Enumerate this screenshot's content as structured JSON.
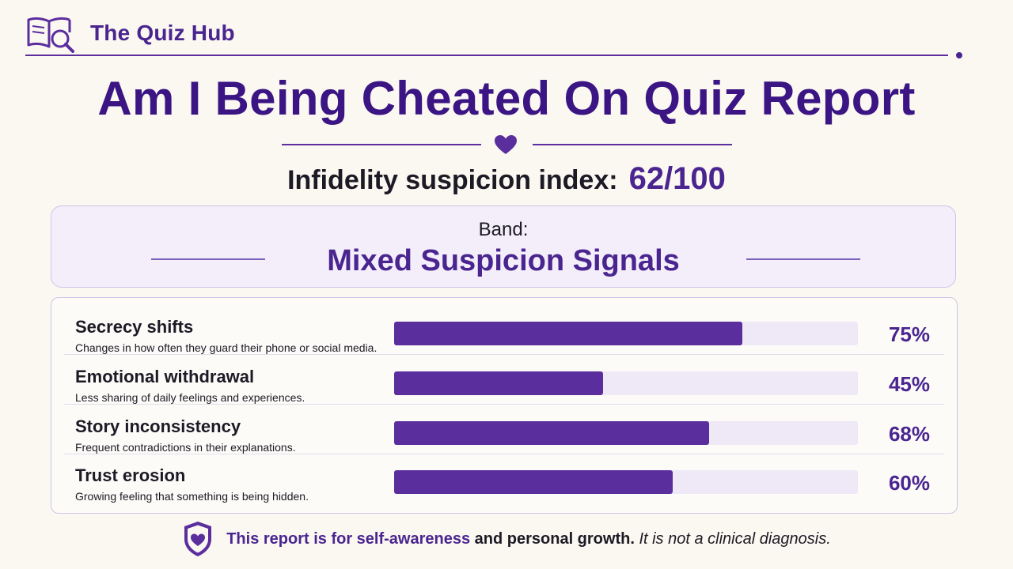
{
  "header": {
    "brand": "The Quiz Hub",
    "logo_icon": "book-magnifier-icon"
  },
  "title": "Am I Being Cheated On Quiz Report",
  "divider_icon": "heart-icon",
  "score": {
    "label": "Infidelity suspicion index:",
    "value": "62/100"
  },
  "band": {
    "label": "Band:",
    "value": "Mixed Suspicion Signals"
  },
  "metrics": [
    {
      "name": "Secrecy shifts",
      "description": "Changes in how often they guard their phone or social media.",
      "percent": 75,
      "percent_label": "75%"
    },
    {
      "name": "Emotional withdrawal",
      "description": "Less sharing of daily feelings and experiences.",
      "percent": 45,
      "percent_label": "45%"
    },
    {
      "name": "Story inconsistency",
      "description": "Frequent contradictions in their explanations.",
      "percent": 68,
      "percent_label": "68%"
    },
    {
      "name": "Trust erosion",
      "description": "Growing feeling that something is being hidden.",
      "percent": 60,
      "percent_label": "60%"
    }
  ],
  "footer": {
    "icon": "shield-heart-icon",
    "part1": "This report is for self-awareness",
    "part2": " and personal growth.",
    "part3": " It is not a clinical diagnosis."
  },
  "colors": {
    "accent": "#4a2590",
    "bar": "#5b2e9e",
    "track": "#efe8f7",
    "background": "#fbf7f1"
  }
}
